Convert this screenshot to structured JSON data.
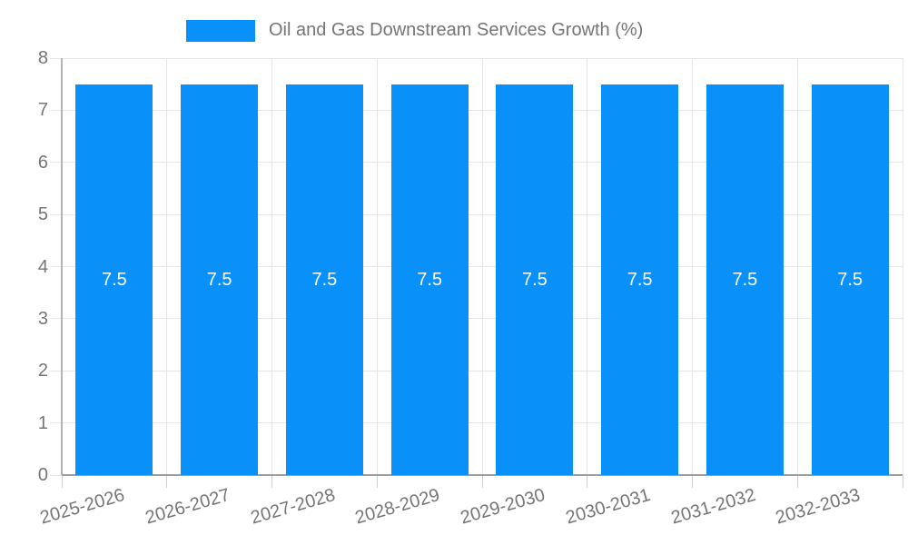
{
  "legend": {
    "label": "Oil and Gas Downstream Services Growth (%)"
  },
  "colors": {
    "bar": "#0991f9",
    "grid": "#e6e6e6",
    "axis_y": "#b3b3b3",
    "axis_x": "#9e9e9e",
    "tick": "#cfcfcf",
    "axis_label": "#757575",
    "bar_label": "#ffffff",
    "background": "#ffffff"
  },
  "chart_data": {
    "type": "bar",
    "title": "Oil and Gas Downstream Services Growth (%)",
    "categories": [
      "2025-2026",
      "2026-2027",
      "2027-2028",
      "2028-2029",
      "2029-2030",
      "2030-2031",
      "2031-2032",
      "2032-2033"
    ],
    "values": [
      7.5,
      7.5,
      7.5,
      7.5,
      7.5,
      7.5,
      7.5,
      7.5
    ],
    "bar_value_labels": [
      "7.5",
      "7.5",
      "7.5",
      "7.5",
      "7.5",
      "7.5",
      "7.5",
      "7.5"
    ],
    "xlabel": "",
    "ylabel": "",
    "ylim": [
      0,
      8
    ],
    "yticks": [
      0,
      1,
      2,
      3,
      4,
      5,
      6,
      7,
      8
    ],
    "grid": true,
    "legend_position": "top",
    "x_label_rotation_deg": -16
  }
}
